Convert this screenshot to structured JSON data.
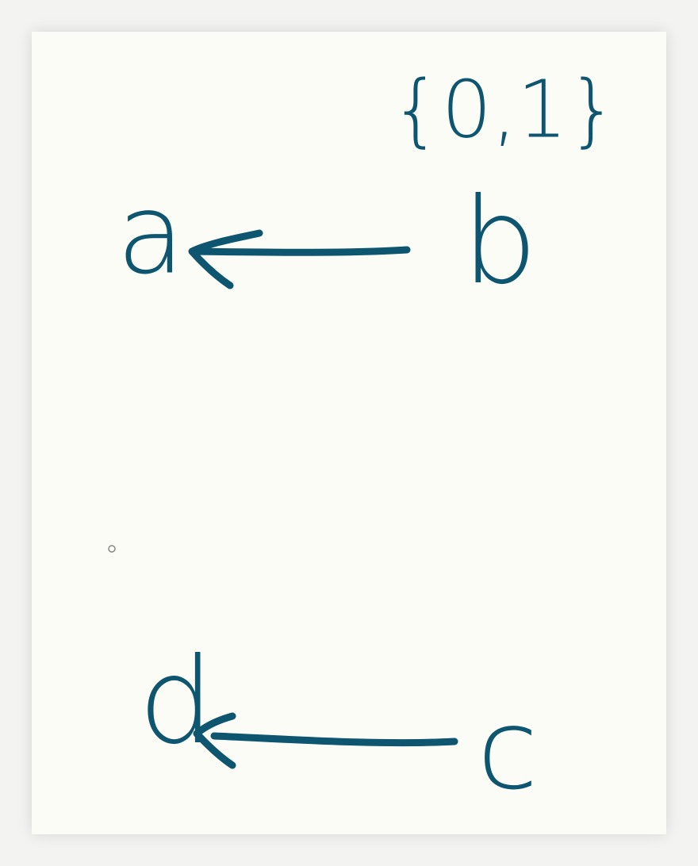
{
  "nodes": [
    {
      "label": "a"
    },
    {
      "label": "b"
    },
    {
      "label": "d"
    },
    {
      "label": "c"
    }
  ],
  "annotations": [
    {
      "label": "{0,1}"
    }
  ]
}
